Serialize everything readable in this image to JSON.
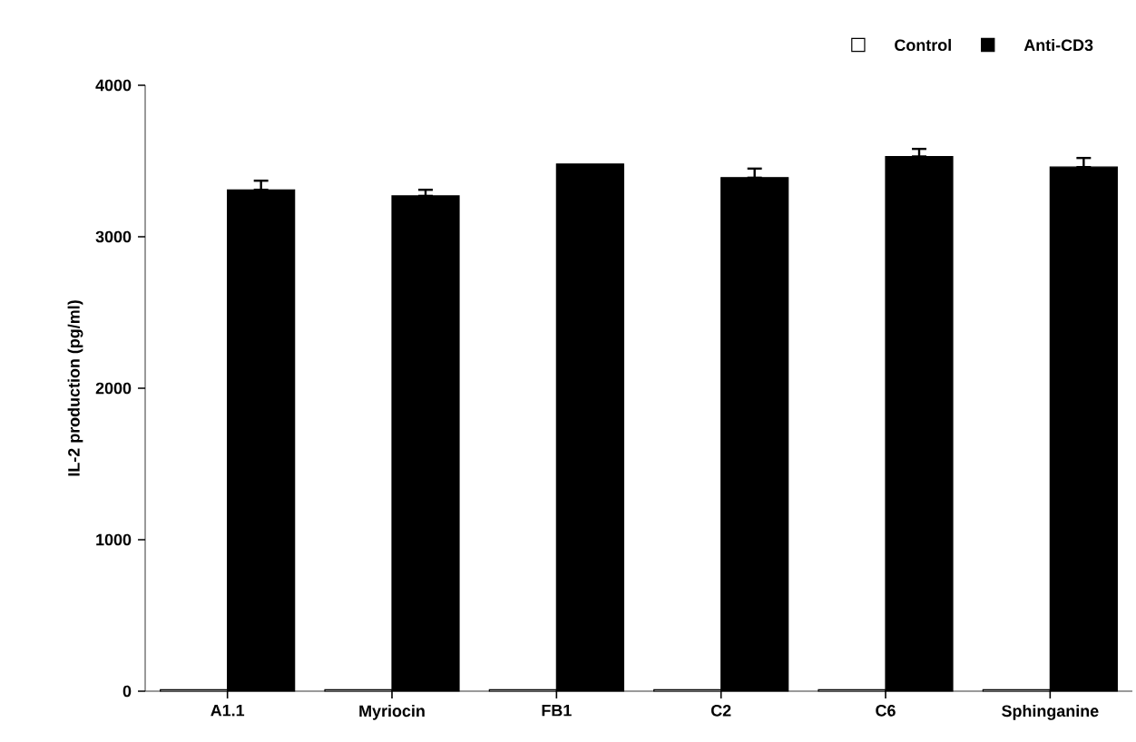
{
  "chart_data": {
    "type": "bar",
    "ylabel": "IL-2 production (pg/ml)",
    "categories": [
      "A1.1",
      "Myriocin",
      "FB1",
      "C2",
      "C6",
      "Sphinganine"
    ],
    "series": [
      {
        "name": "Control",
        "color": "#ffffff",
        "values": [
          10,
          10,
          10,
          10,
          10,
          10
        ]
      },
      {
        "name": "Anti-CD3",
        "color": "#000000",
        "values": [
          3310,
          3270,
          3480,
          3390,
          3530,
          3460
        ],
        "errors": [
          [
            3310,
            3370
          ],
          [
            3270,
            3310
          ],
          null,
          [
            3390,
            3450
          ],
          [
            3530,
            3580
          ],
          [
            3460,
            3520
          ]
        ]
      }
    ],
    "ylim": [
      0,
      4000
    ],
    "yticks": [
      0,
      1000,
      2000,
      3000,
      4000
    ],
    "grid": false,
    "legend": "top right"
  }
}
